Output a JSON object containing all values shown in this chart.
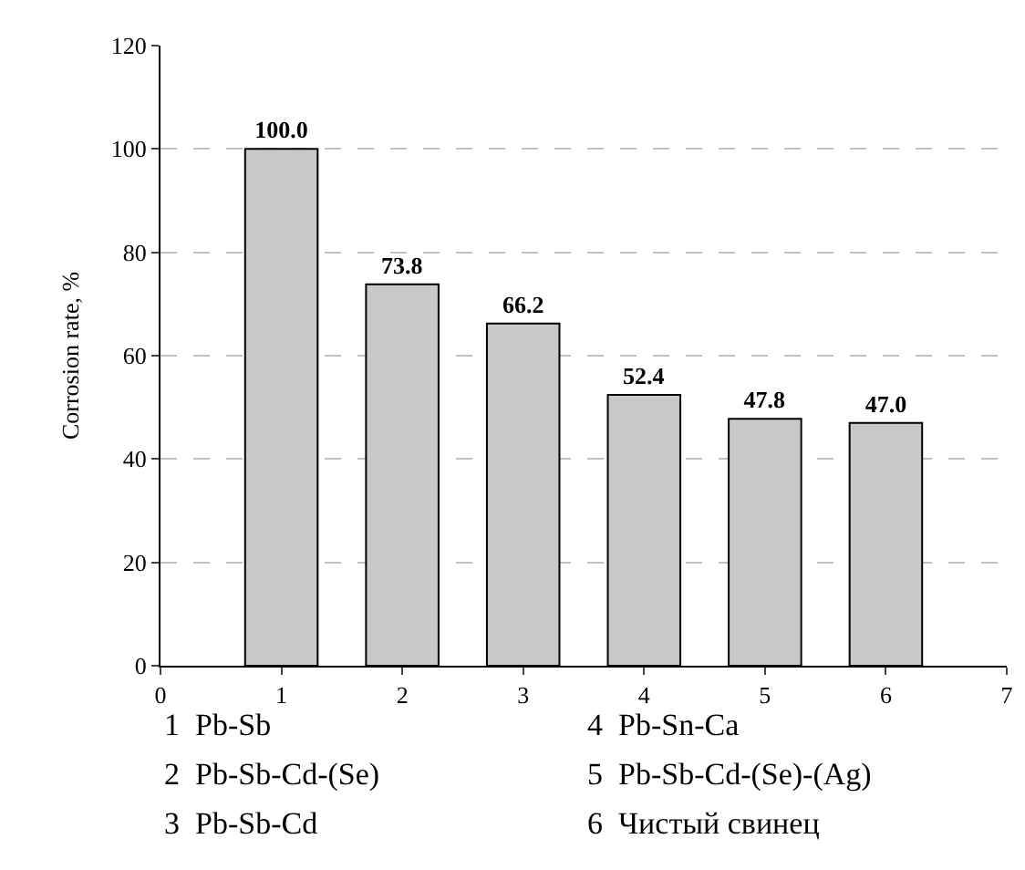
{
  "chart_data": {
    "type": "bar",
    "ylabel": "Corrosion rate, %",
    "x": [
      1,
      2,
      3,
      4,
      5,
      6
    ],
    "values": [
      100.0,
      73.8,
      66.2,
      52.4,
      47.8,
      47.0
    ],
    "value_labels": [
      "100.0",
      "73.8",
      "66.2",
      "52.4",
      "47.8",
      "47.0"
    ],
    "color": "#c8c8c8",
    "xlim": [
      0,
      7
    ],
    "xticks": [
      0,
      1,
      2,
      3,
      4,
      5,
      6,
      7
    ],
    "ylim": [
      0,
      120
    ],
    "yticks": [
      0,
      20,
      40,
      60,
      80,
      100,
      120
    ],
    "grid": "y",
    "line_style": "dashed",
    "annotations": [
      "1  Pb-Sb",
      "2  Pb-Sb-Cd-(Se)",
      "3  Pb-Sb-Cd",
      "4  Pb-Sn-Ca",
      "5  Pb-Sb-Cd-(Se)-(Ag)",
      "6  Чистый свинец"
    ]
  }
}
